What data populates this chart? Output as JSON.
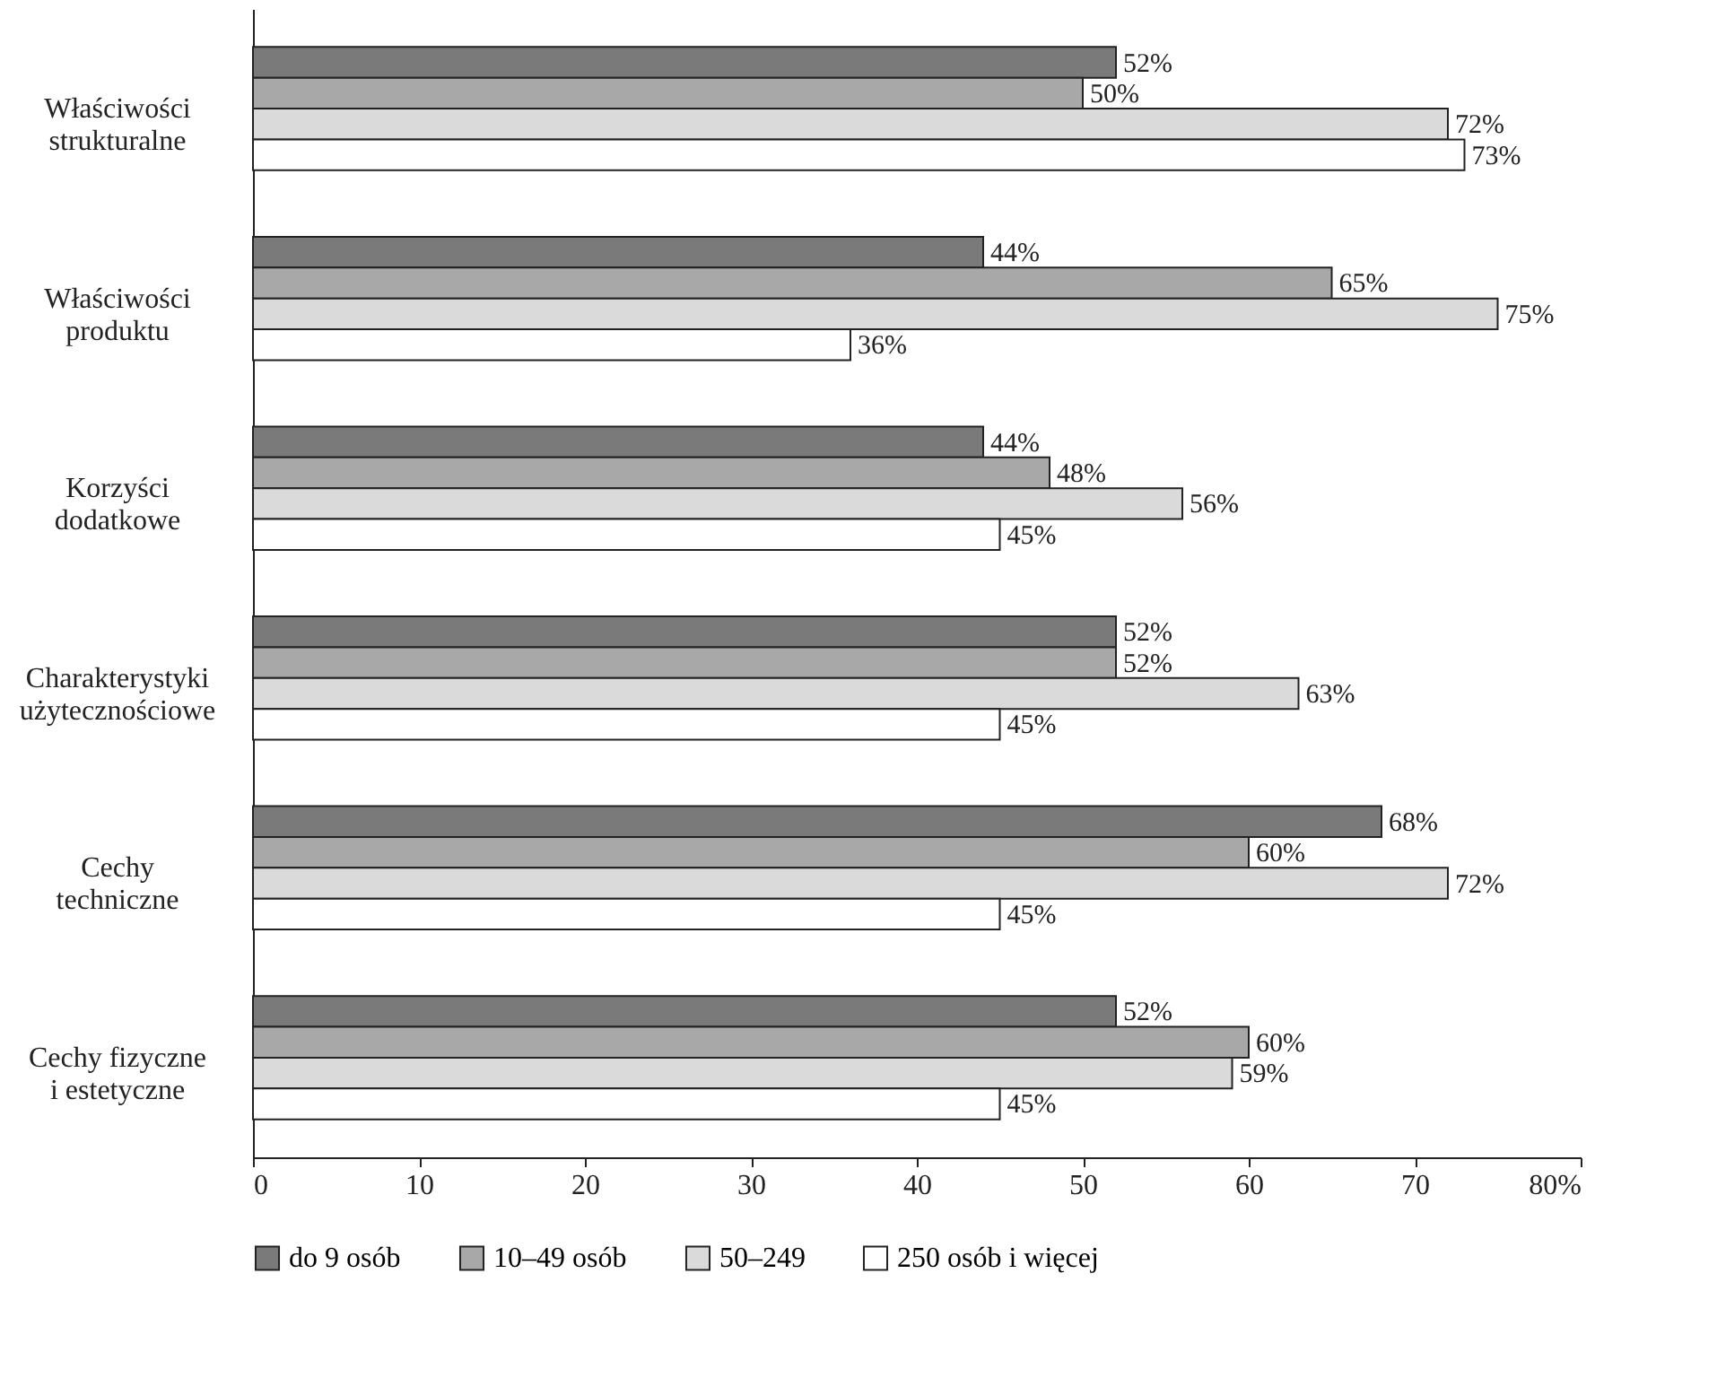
{
  "chart_data": {
    "type": "bar",
    "orientation": "horizontal",
    "categories": [
      "Właściwości strukturalne",
      "Właściwości produktu",
      "Korzyści dodatkowe",
      "Charakterystyki użytecznościowe",
      "Cechy techniczne",
      "Cechy fizyczne i estetyczne"
    ],
    "series": [
      {
        "name": "do 9 osób",
        "color": "#7a7a7a",
        "values": [
          52,
          44,
          44,
          52,
          68,
          52
        ],
        "value_labels": [
          "52%",
          "44%",
          "44%",
          "52%",
          "68%",
          "52%"
        ]
      },
      {
        "name": "10–49 osób",
        "color": "#a8a8a8",
        "values": [
          50,
          65,
          48,
          52,
          60,
          60
        ],
        "value_labels": [
          "50%",
          "65%",
          "48%",
          "52%",
          "60%",
          "60%"
        ]
      },
      {
        "name": "50–249",
        "color": "#dadada",
        "values": [
          72,
          75,
          56,
          63,
          72,
          59
        ],
        "value_labels": [
          "72%",
          "75%",
          "56%",
          "63%",
          "72%",
          "59%"
        ]
      },
      {
        "name": "250 osób i więcej",
        "color": "#ffffff",
        "values": [
          73,
          36,
          45,
          45,
          45,
          45
        ],
        "value_labels": [
          "73%",
          "36%",
          "45%",
          "45%",
          "45%",
          "45%"
        ]
      }
    ],
    "xlim": [
      0,
      80
    ],
    "xticks": [
      0,
      10,
      20,
      30,
      40,
      50,
      60,
      70,
      {
        "value": 80,
        "label": "80%"
      }
    ],
    "legend": "bottom"
  }
}
